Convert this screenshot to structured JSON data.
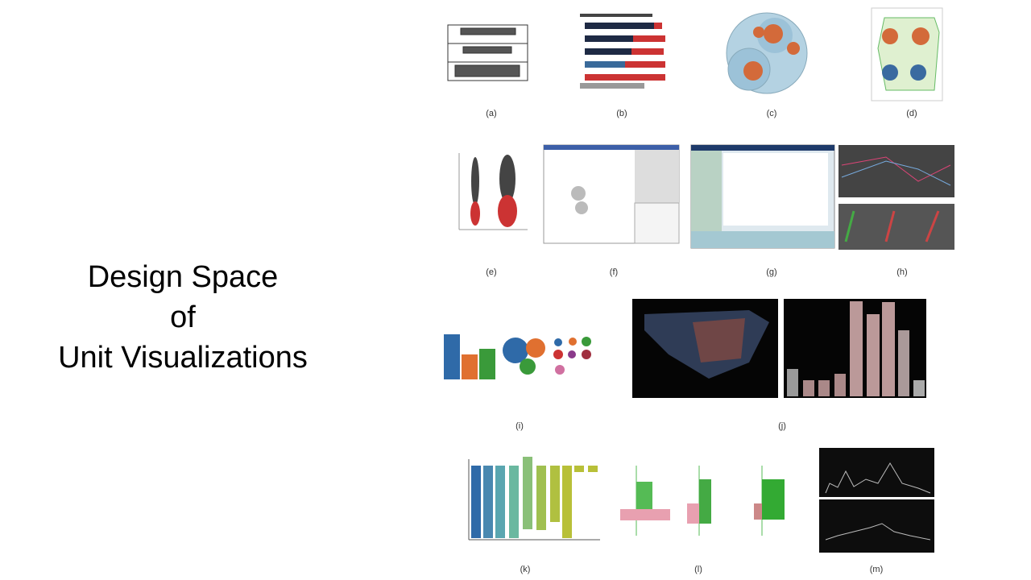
{
  "title": {
    "lines": [
      "Design Space",
      "of",
      "Unit Visualizations"
    ]
  },
  "figures": [
    {
      "label": "(a)"
    },
    {
      "label": "(b)"
    },
    {
      "label": "(c)"
    },
    {
      "label": "(d)"
    },
    {
      "label": "(e)"
    },
    {
      "label": "(f)"
    },
    {
      "label": "(g)"
    },
    {
      "label": "(h)"
    },
    {
      "label": "(i)"
    },
    {
      "label": "(j)"
    },
    {
      "label": "(k)"
    },
    {
      "label": "(l)"
    },
    {
      "label": "(m)"
    }
  ]
}
